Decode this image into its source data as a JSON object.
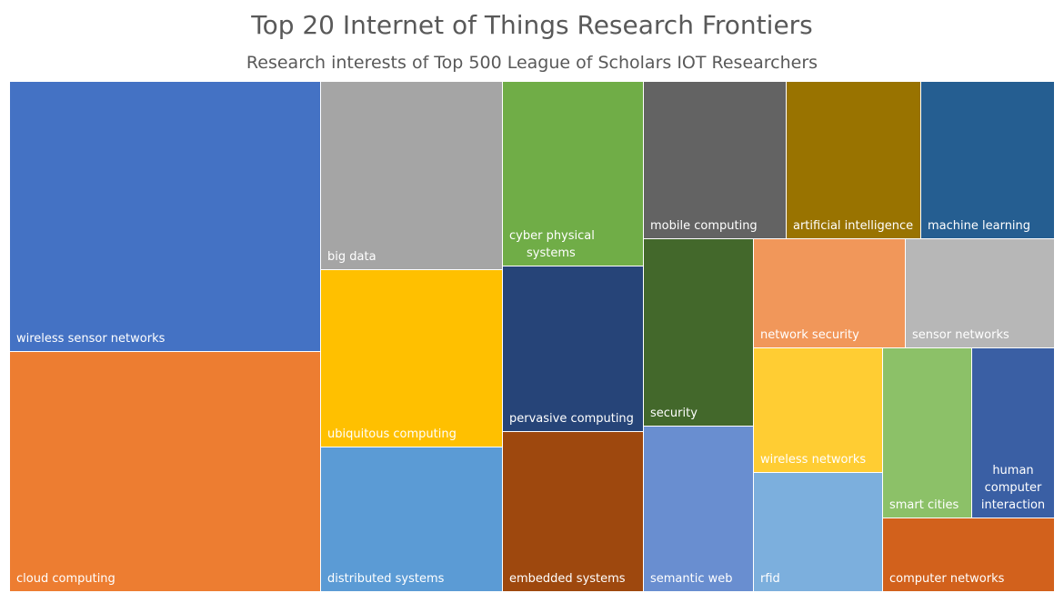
{
  "chart_data": {
    "type": "treemap",
    "title": "Top 20 Internet of Things Research Frontiers",
    "subtitle": "Research interests of Top 500 League of Scholars IOT Researchers",
    "unit": "relative share (approximate, estimated from tile area)",
    "items": [
      {
        "name": "wireless sensor networks",
        "label_lines": [
          "wireless sensor networks"
        ],
        "value": 100,
        "color": "#4472C4",
        "label_pos": "bottom-left"
      },
      {
        "name": "cloud computing",
        "label_lines": [
          "cloud computing"
        ],
        "value": 90,
        "color": "#ED7D31",
        "label_pos": "bottom-left"
      },
      {
        "name": "big data",
        "label_lines": [
          "big data"
        ],
        "value": 41,
        "color": "#A5A5A5",
        "label_pos": "bottom-left"
      },
      {
        "name": "ubiquitous computing",
        "label_lines": [
          "ubiquitous computing"
        ],
        "value": 39,
        "color": "#FFC000",
        "label_pos": "bottom-left"
      },
      {
        "name": "distributed systems",
        "label_lines": [
          "distributed systems"
        ],
        "value": 32,
        "color": "#5B9BD5",
        "label_pos": "bottom-left"
      },
      {
        "name": "cyber physical systems",
        "label_lines": [
          "cyber physical",
          "systems"
        ],
        "value": 35,
        "color": "#70AD47",
        "label_pos": "bottom-left"
      },
      {
        "name": "pervasive computing",
        "label_lines": [
          "pervasive computing"
        ],
        "value": 33,
        "color": "#264478",
        "label_pos": "bottom-left"
      },
      {
        "name": "embedded systems",
        "label_lines": [
          "embedded systems"
        ],
        "value": 30,
        "color": "#9E480E",
        "label_pos": "bottom-left"
      },
      {
        "name": "mobile computing",
        "label_lines": [
          "mobile computing"
        ],
        "value": 27,
        "color": "#636363",
        "label_pos": "bottom-left"
      },
      {
        "name": "artificial intelligence",
        "label_lines": [
          "artificial intelligence"
        ],
        "value": 27,
        "color": "#997300",
        "label_pos": "bottom-left"
      },
      {
        "name": "machine learning",
        "label_lines": [
          "machine learning"
        ],
        "value": 27,
        "color": "#255E91",
        "label_pos": "bottom-left"
      },
      {
        "name": "security",
        "label_lines": [
          "security"
        ],
        "value": 25,
        "color": "#43682B",
        "label_pos": "bottom-left"
      },
      {
        "name": "semantic web",
        "label_lines": [
          "semantic web"
        ],
        "value": 25,
        "color": "#698ED0",
        "label_pos": "bottom-left"
      },
      {
        "name": "network security",
        "label_lines": [
          "network security"
        ],
        "value": 20,
        "color": "#F1975A",
        "label_pos": "bottom-left"
      },
      {
        "name": "sensor networks",
        "label_lines": [
          "sensor networks"
        ],
        "value": 19,
        "color": "#B7B7B7",
        "label_pos": "bottom-left"
      },
      {
        "name": "wireless networks",
        "label_lines": [
          "wireless networks"
        ],
        "value": 18,
        "color": "#FFCD33",
        "label_pos": "bottom-left"
      },
      {
        "name": "rfid",
        "label_lines": [
          "rfid"
        ],
        "value": 17,
        "color": "#7CAFDD",
        "label_pos": "bottom-left"
      },
      {
        "name": "smart cities",
        "label_lines": [
          "smart cities"
        ],
        "value": 15,
        "color": "#8CC168",
        "label_pos": "bottom-left"
      },
      {
        "name": "human computer interaction",
        "label_lines": [
          "human",
          "computer",
          "interaction"
        ],
        "value": 12,
        "color": "#3A5FA4",
        "label_pos": "bottom-center"
      },
      {
        "name": "computer networks",
        "label_lines": [
          "computer networks"
        ],
        "value": 12,
        "color": "#D2611C",
        "label_pos": "bottom-left"
      }
    ]
  }
}
